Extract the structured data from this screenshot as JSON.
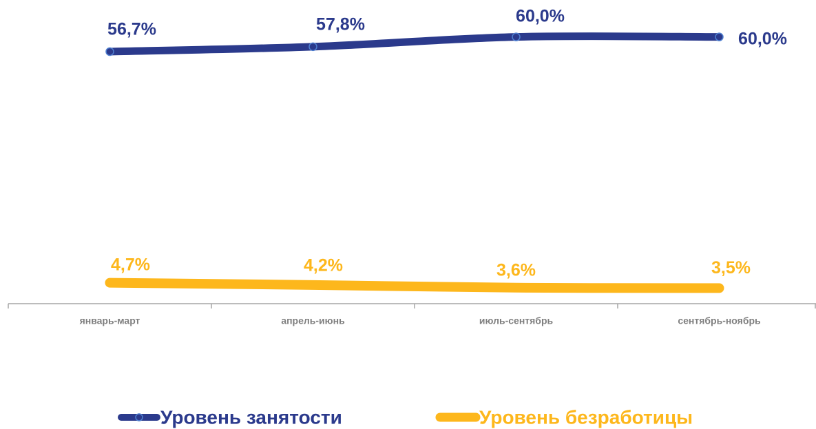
{
  "chart_data": {
    "type": "line",
    "categories": [
      "январь-март",
      "апрель-июнь",
      "июль-сентябрь",
      "сентябрь-ноябрь"
    ],
    "series": [
      {
        "name": "Уровень занятости",
        "color": "#2b3a8c",
        "values": [
          56.7,
          57.8,
          60.0,
          60.0
        ],
        "value_labels": [
          "56,7%",
          "57,8%",
          "60,0%",
          "60,0%"
        ]
      },
      {
        "name": "Уровень безработицы",
        "color": "#fdb71c",
        "values": [
          4.7,
          4.2,
          3.6,
          3.5
        ],
        "value_labels": [
          "4,7%",
          "4,2%",
          "3,6%",
          "3,5%"
        ]
      }
    ],
    "ylim": [
      0,
      68
    ],
    "markers": [
      true,
      false
    ],
    "legend": "bottom"
  }
}
